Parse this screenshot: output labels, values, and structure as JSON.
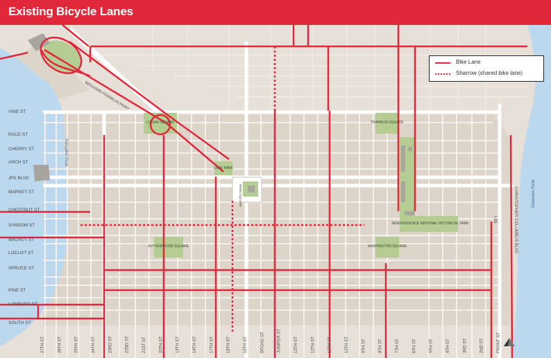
{
  "title": "Existing Bicycle Lanes",
  "legend": {
    "bike_lane": "Bike Lane",
    "sharrow": "Sharrow (shared bike lane)"
  },
  "colors": {
    "bike_lane": "#e0283a",
    "park": "#b5cc93",
    "river": "#bcd8ef",
    "land": "#e6e0d8",
    "block": "#ddd5ca"
  },
  "east_west_streets": [
    "VINE ST",
    "RACE ST",
    "CHERRY ST",
    "ARCH ST",
    "JFK BLVD",
    "MARKET ST",
    "CHESTNUT ST",
    "SANSOM ST",
    "WALNUT ST",
    "LOCUST ST",
    "SPRUCE ST",
    "PINE ST",
    "LOMBARD ST",
    "SOUTH ST"
  ],
  "north_south_streets": [
    "27TH ST",
    "26TH ST",
    "25TH ST",
    "24TH ST",
    "23RD ST",
    "22ND ST",
    "21ST ST",
    "20TH ST",
    "19TH ST",
    "18TH ST",
    "17TH ST",
    "16TH ST",
    "15TH ST",
    "BROAD ST",
    "JUNIPER ST",
    "13TH ST",
    "12TH ST",
    "11TH ST",
    "10TH ST",
    "9TH ST",
    "8TH ST",
    "7TH ST",
    "6TH ST",
    "5TH ST",
    "4TH ST",
    "3RD ST",
    "2ND ST",
    "FRONT ST"
  ],
  "parks": {
    "logan": "LOGAN SQUARE",
    "franklin": "FRANKLIN SQUARE",
    "love": "LOVE PARK",
    "rittenhouse": "RITTENHOUSE SQUARE",
    "washington": "WASHINGTON SQUARE",
    "independence": "INDEPENDENCE NATIONAL HISTORICAL PARK"
  },
  "labels": {
    "parkway": "BENJAMIN FRANKLIN PKWY",
    "city_hall": "PENN SQUARE",
    "schuylkill": "Schuylkill River",
    "delaware": "Delaware River",
    "i95": "I-95",
    "columbus": "CHRISTOPHER COLUMBUS BLVD"
  }
}
